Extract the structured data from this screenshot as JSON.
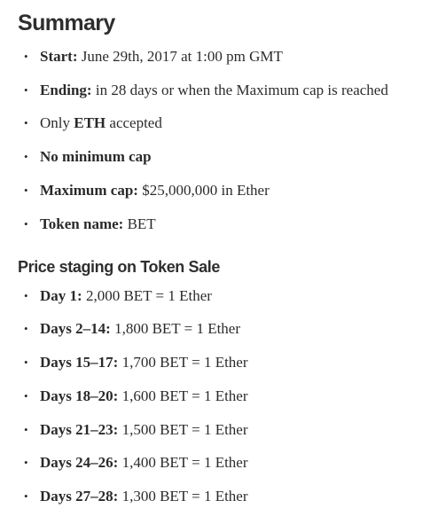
{
  "summary": {
    "heading": "Summary",
    "items": [
      {
        "bold": "Start:",
        "text": " June 29th, 2017 at 1:00 pm GMT",
        "before": ""
      },
      {
        "bold": "Ending:",
        "text": " in 28 days or when the Maximum cap is reached",
        "before": ""
      },
      {
        "before": "Only ",
        "bold": "ETH",
        "text": " accepted"
      },
      {
        "bold": "No minimum cap",
        "text": "",
        "before": ""
      },
      {
        "bold": "Maximum cap:",
        "text": " $25,000,000 in Ether",
        "before": ""
      },
      {
        "bold": "Token name:",
        "text": " BET",
        "before": ""
      }
    ]
  },
  "price_staging": {
    "heading": "Price staging on Token Sale",
    "items": [
      {
        "bold": "Day 1:",
        "text": " 2,000 BET = 1 Ether"
      },
      {
        "bold": "Days 2–14:",
        "text": " 1,800 BET = 1 Ether"
      },
      {
        "bold": "Days 15–17:",
        "text": " 1,700 BET = 1 Ether"
      },
      {
        "bold": "Days 18–20:",
        "text": " 1,600 BET = 1 Ether"
      },
      {
        "bold": "Days 21–23:",
        "text": " 1,500 BET = 1 Ether"
      },
      {
        "bold": "Days 24–26:",
        "text": " 1,400 BET = 1 Ether"
      },
      {
        "bold": "Days 27–28:",
        "text": " 1,300 BET = 1 Ether"
      }
    ]
  },
  "bullet_glyph": "•",
  "colors": {
    "text": "#292929",
    "background": "#ffffff"
  }
}
